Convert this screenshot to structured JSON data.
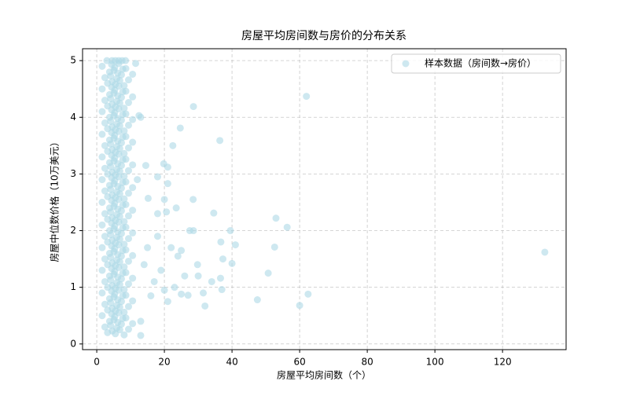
{
  "chart_data": {
    "type": "scatter",
    "title": "房屋平均房间数与房价的分布关系",
    "x_label": "房屋平均房间数（个）",
    "y_label": "房屋中位数价格（10万美元）",
    "xlim": [
      -4.2,
      138.8
    ],
    "ylim": [
      -0.1,
      5.21
    ],
    "xticks": [
      0,
      20,
      40,
      60,
      80,
      100,
      120
    ],
    "yticks": [
      0,
      1,
      2,
      3,
      4,
      5
    ],
    "grid": true,
    "legend": "upper right",
    "series": [
      {
        "name": "样本数据（房间数→房价）",
        "color": "#add8e6",
        "x": [
          3.2,
          4.6,
          5.5,
          6.8,
          8.1,
          2.4,
          4.1,
          5.9,
          7.3,
          9.4,
          3.8,
          5.1,
          6.2,
          7.7,
          10.6,
          1.6,
          4.4,
          5.3,
          6.5,
          8.6,
          3.2,
          4.6,
          5.5,
          6.8,
          8.1,
          2.4,
          4.1,
          5.9,
          7.3,
          9.4,
          3.8,
          5.1,
          6.2,
          7.7,
          10.6,
          1.6,
          4.4,
          5.3,
          6.5,
          8.6,
          3.2,
          4.6,
          5.5,
          6.8,
          8.1,
          2.4,
          4.1,
          5.9,
          7.3,
          9.4,
          3.8,
          5.1,
          6.2,
          7.7,
          10.6,
          1.6,
          4.4,
          5.3,
          6.5,
          8.6,
          3.2,
          4.6,
          5.5,
          6.8,
          8.1,
          2.4,
          4.1,
          5.9,
          7.3,
          9.4,
          3.8,
          5.1,
          6.2,
          7.7,
          10.6,
          1.6,
          4.4,
          5.3,
          6.5,
          8.6,
          3.2,
          4.6,
          5.5,
          6.8,
          8.1,
          2.4,
          4.1,
          5.9,
          7.3,
          9.4,
          3.8,
          5.1,
          6.2,
          7.7,
          10.6,
          1.6,
          4.4,
          5.3,
          6.5,
          8.6,
          3.2,
          4.6,
          5.5,
          6.8,
          8.1,
          2.4,
          4.1,
          5.9,
          7.3,
          9.4,
          3.8,
          5.1,
          6.2,
          7.7,
          10.6,
          1.6,
          4.4,
          5.3,
          6.5,
          8.6,
          3.2,
          4.6,
          5.5,
          6.8,
          8.1,
          2.4,
          4.1,
          5.9,
          7.3,
          9.4,
          3.8,
          5.1,
          6.2,
          7.7,
          10.6,
          1.6,
          4.4,
          5.3,
          6.5,
          8.6,
          3.2,
          4.6,
          5.5,
          6.8,
          8.1,
          2.4,
          4.1,
          5.9,
          7.3,
          9.4,
          3.8,
          5.1,
          6.2,
          7.7,
          10.6,
          1.6,
          4.4,
          5.3,
          6.5,
          8.6,
          3.2,
          4.6,
          5.5,
          6.8,
          8.1,
          2.4,
          4.1,
          5.9,
          7.3,
          9.4,
          3.8,
          5.1,
          6.2,
          7.7,
          10.6,
          1.6,
          4.4,
          5.3,
          6.5,
          8.6,
          3.2,
          4.6,
          5.5,
          6.8,
          8.1,
          2.4,
          4.1,
          5.9,
          7.3,
          9.4,
          3.8,
          5.1,
          6.2,
          7.7,
          10.6,
          1.6,
          4.4,
          5.3,
          6.5,
          8.6,
          3.2,
          4.6,
          5.5,
          6.8,
          8.1,
          2.4,
          4.1,
          5.9,
          7.3,
          9.4,
          3.8,
          5.1,
          6.2,
          7.7,
          10.6,
          1.6,
          4.4,
          5.3,
          6.5,
          8.6,
          3.2,
          4.6,
          5.5,
          6.8,
          8.1,
          2.4,
          4.1,
          5.9,
          7.3,
          9.4,
          3.8,
          5.1,
          6.2,
          7.7,
          10.6,
          1.6,
          4.4,
          5.3,
          6.5,
          8.6,
          3.0,
          4.5,
          5.5,
          6.5,
          7.5,
          8.5,
          62,
          28.6,
          24.7,
          36.4,
          22.5,
          14.5,
          19.8,
          21,
          18,
          21,
          12,
          28.5,
          34.6,
          15.2,
          20,
          23.5,
          20.6,
          53,
          56.3,
          39.5,
          27.5,
          28.6,
          36.7,
          41,
          52.6,
          37.3,
          40,
          29.8,
          50.7,
          132.5,
          36.6,
          37,
          47.5,
          62.5,
          60,
          32,
          31.5,
          25,
          21,
          27,
          13,
          12.5,
          13,
          11.5,
          18,
          22,
          24,
          19,
          26,
          17,
          16,
          20,
          23,
          18,
          15,
          14,
          25,
          30,
          34,
          13
        ],
        "values": [
          0.2,
          0.23,
          0.18,
          0.25,
          0.16,
          0.3,
          0.33,
          0.28,
          0.35,
          0.26,
          0.4,
          0.43,
          0.38,
          0.45,
          0.36,
          0.5,
          0.53,
          0.48,
          0.55,
          0.46,
          0.6,
          0.63,
          0.58,
          0.65,
          0.56,
          0.7,
          0.73,
          0.68,
          0.75,
          0.66,
          0.8,
          0.83,
          0.78,
          0.85,
          0.76,
          0.9,
          0.93,
          0.88,
          0.95,
          0.86,
          1.0,
          1.03,
          0.98,
          1.05,
          0.96,
          1.1,
          1.13,
          1.08,
          1.15,
          1.06,
          1.2,
          1.23,
          1.18,
          1.25,
          1.16,
          1.3,
          1.33,
          1.28,
          1.35,
          1.26,
          1.4,
          1.43,
          1.38,
          1.45,
          1.36,
          1.5,
          1.53,
          1.48,
          1.55,
          1.46,
          1.6,
          1.63,
          1.58,
          1.65,
          1.56,
          1.7,
          1.73,
          1.68,
          1.75,
          1.66,
          1.8,
          1.83,
          1.78,
          1.85,
          1.76,
          1.9,
          1.93,
          1.88,
          1.95,
          1.86,
          2.0,
          2.03,
          1.98,
          2.05,
          1.96,
          2.1,
          2.13,
          2.08,
          2.15,
          2.06,
          2.2,
          2.23,
          2.18,
          2.25,
          2.16,
          2.3,
          2.33,
          2.28,
          2.35,
          2.26,
          2.4,
          2.43,
          2.38,
          2.45,
          2.36,
          2.5,
          2.53,
          2.48,
          2.55,
          2.46,
          2.6,
          2.63,
          2.58,
          2.65,
          2.56,
          2.7,
          2.73,
          2.68,
          2.75,
          2.66,
          2.8,
          2.83,
          2.78,
          2.85,
          2.76,
          2.9,
          2.93,
          2.88,
          2.95,
          2.86,
          3.0,
          3.03,
          2.98,
          3.05,
          2.96,
          3.1,
          3.13,
          3.08,
          3.15,
          3.06,
          3.2,
          3.23,
          3.18,
          3.25,
          3.16,
          3.3,
          3.33,
          3.28,
          3.35,
          3.26,
          3.4,
          3.43,
          3.38,
          3.45,
          3.36,
          3.5,
          3.53,
          3.48,
          3.55,
          3.46,
          3.6,
          3.63,
          3.58,
          3.65,
          3.56,
          3.7,
          3.73,
          3.68,
          3.75,
          3.66,
          3.8,
          3.83,
          3.78,
          3.85,
          3.76,
          3.9,
          3.93,
          3.88,
          3.95,
          3.86,
          4.0,
          4.03,
          3.98,
          4.05,
          3.96,
          4.1,
          4.13,
          4.08,
          4.15,
          4.06,
          4.2,
          4.23,
          4.18,
          4.25,
          4.16,
          4.3,
          4.33,
          4.28,
          4.35,
          4.26,
          4.4,
          4.43,
          4.38,
          4.45,
          4.36,
          4.5,
          4.53,
          4.48,
          4.55,
          4.46,
          4.6,
          4.63,
          4.58,
          4.65,
          4.56,
          4.7,
          4.73,
          4.68,
          4.75,
          4.66,
          4.8,
          4.83,
          4.78,
          4.85,
          4.76,
          4.9,
          4.93,
          4.88,
          4.95,
          4.86,
          5.0,
          5.0,
          5.0,
          5.0,
          5.0,
          5.0,
          4.37,
          4.19,
          3.81,
          3.59,
          3.5,
          3.15,
          3.18,
          3.12,
          2.95,
          2.83,
          2.9,
          2.55,
          2.31,
          2.57,
          2.55,
          2.4,
          2.33,
          2.22,
          2.06,
          2.0,
          2.0,
          2.0,
          1.8,
          1.75,
          1.71,
          1.5,
          1.42,
          1.4,
          1.25,
          1.62,
          1.16,
          0.96,
          0.78,
          0.88,
          0.68,
          0.67,
          0.9,
          0.88,
          0.75,
          0.86,
          0.15,
          4.03,
          4.0,
          4.95,
          1.9,
          1.7,
          1.55,
          1.3,
          1.2,
          1.1,
          0.85,
          0.95,
          1.0,
          2.3,
          1.7,
          1.4,
          1.65,
          1.2,
          1.1,
          0.4
        ]
      }
    ]
  }
}
